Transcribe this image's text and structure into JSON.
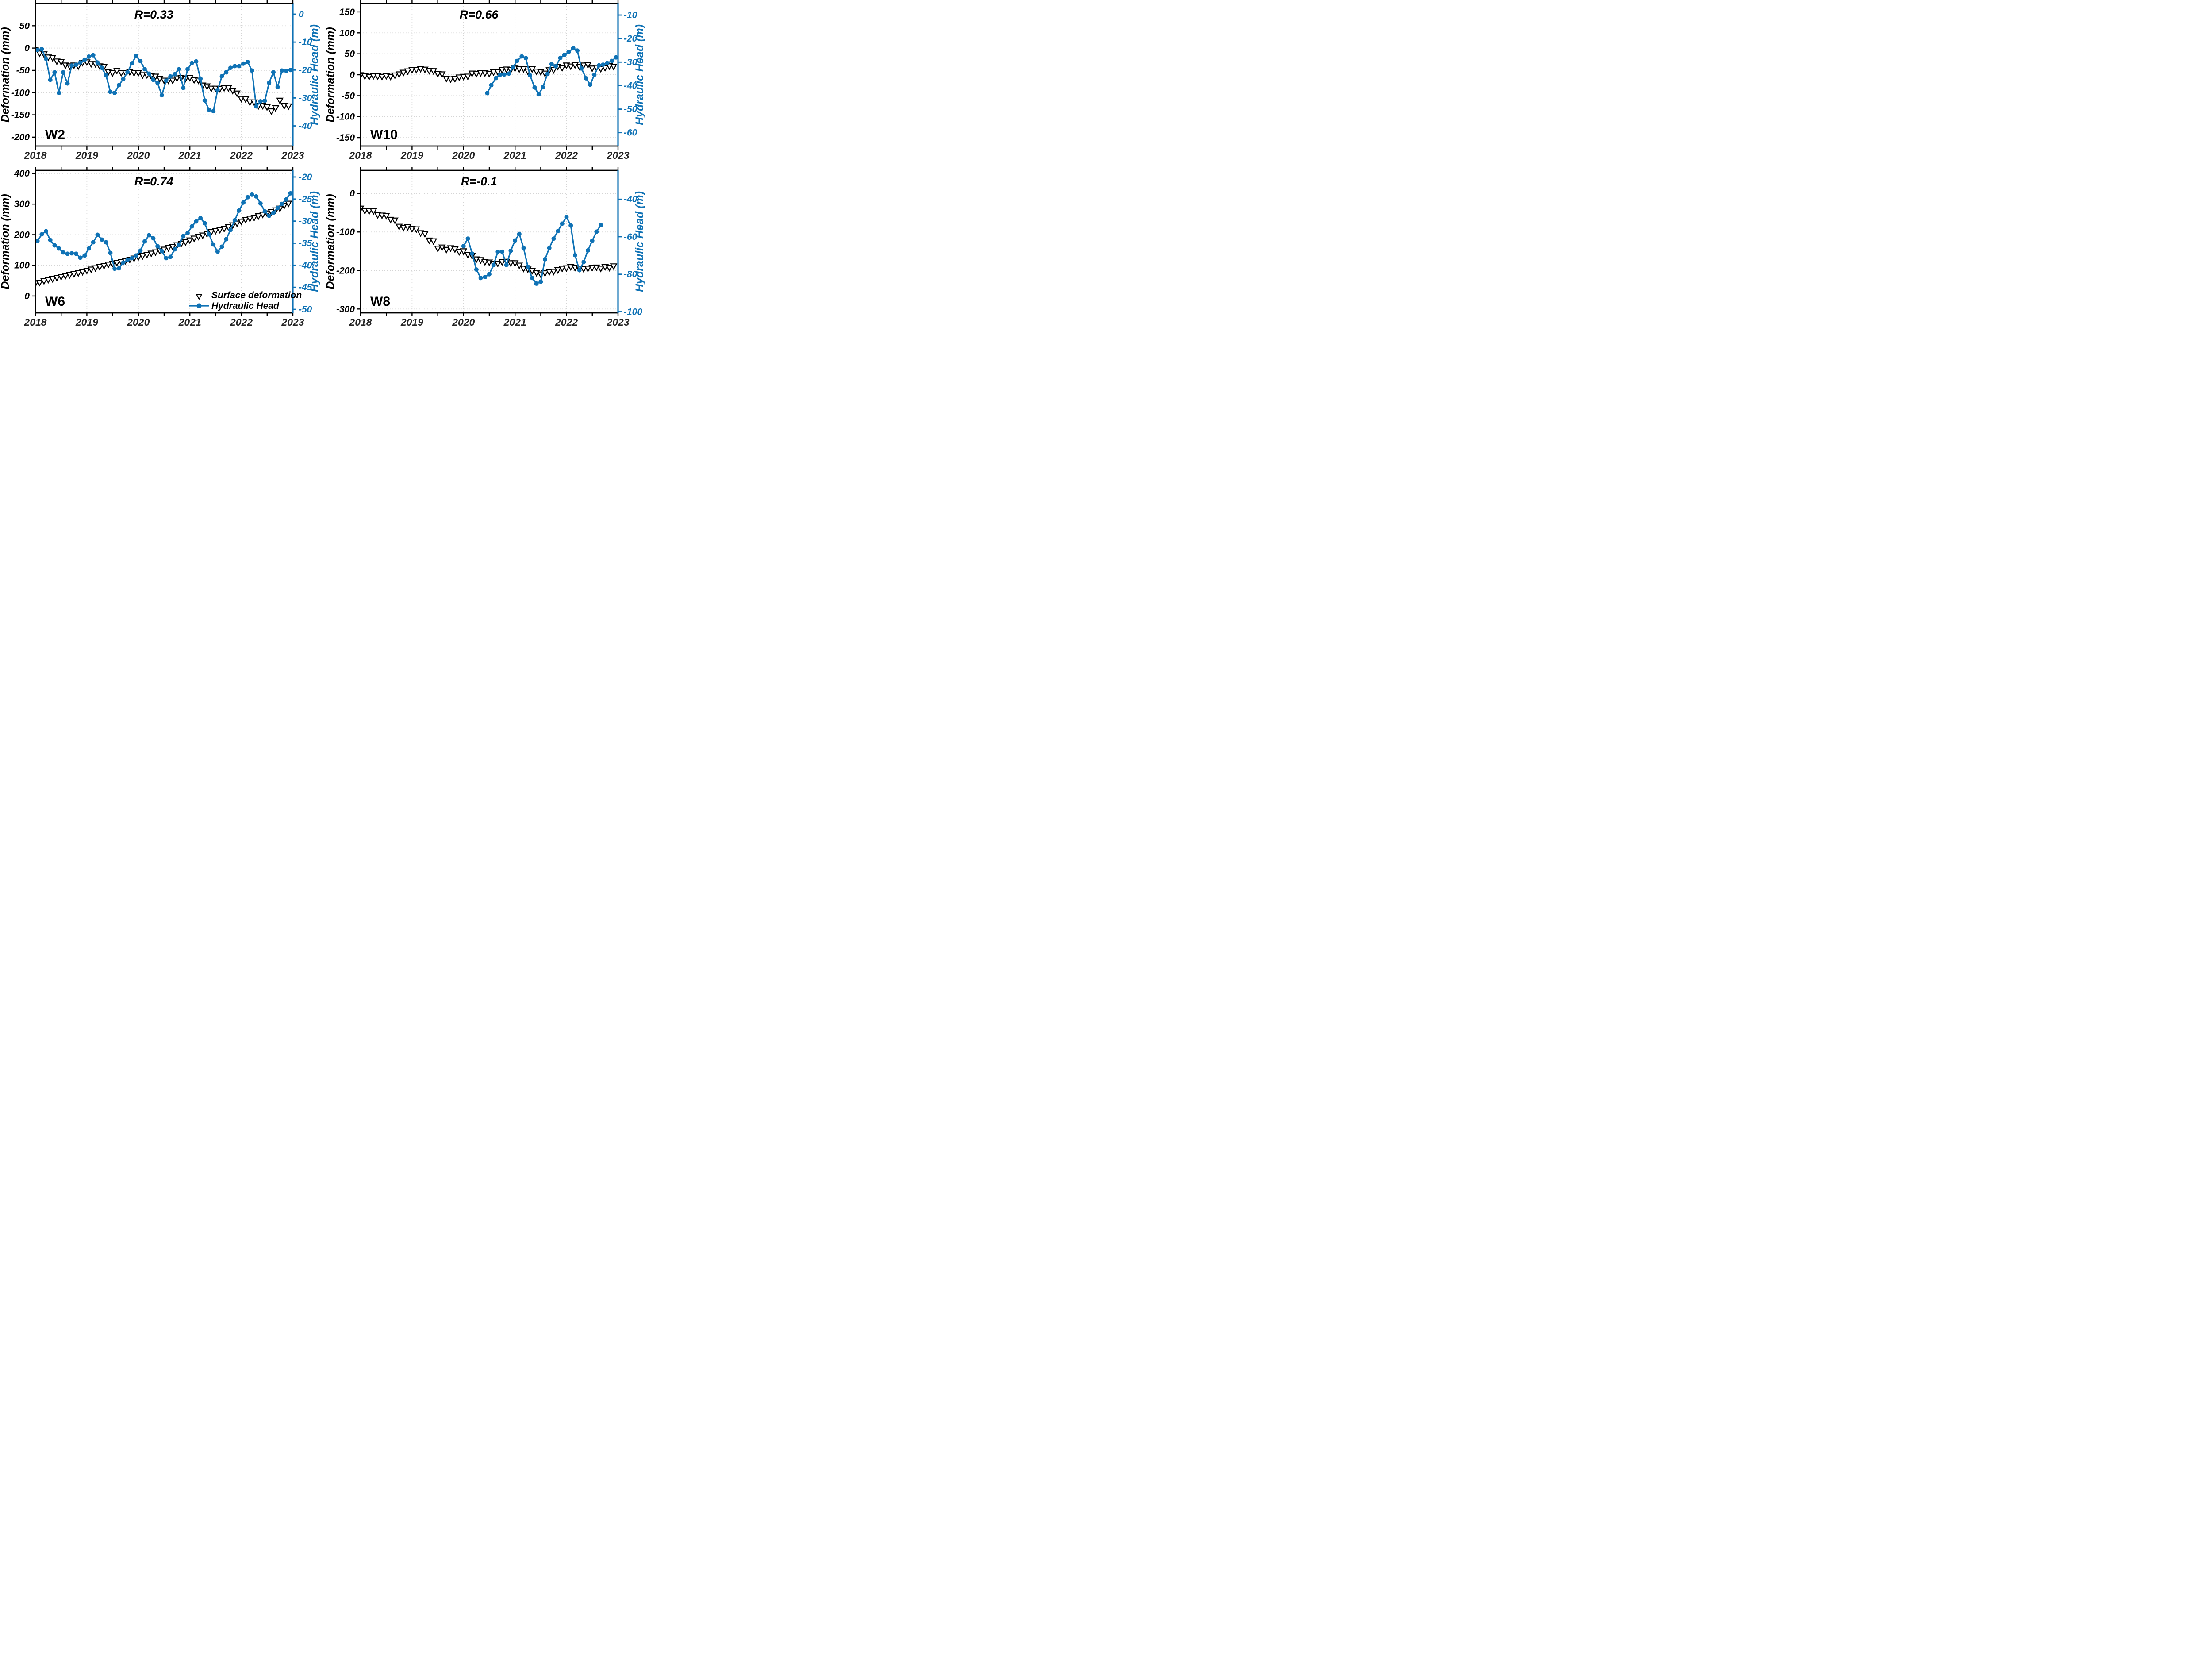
{
  "figure": {
    "background": "#ffffff"
  },
  "style": {
    "head_color": "#0f72b5",
    "deformation_color": "#000000",
    "grid_color": "#d4d4d4",
    "axis_color": "#000000",
    "year_label_color": "#262626"
  },
  "legend": {
    "items": [
      {
        "marker": "triangle-down-open",
        "label": "Surface deformation"
      },
      {
        "marker": "line-circle",
        "label": "Hydraulic Head"
      }
    ]
  },
  "chart_data": [
    {
      "type": "line",
      "well": "W2",
      "r_label": "R=0.33",
      "x_axis": {
        "lim": [
          2018,
          2023
        ],
        "ticks": [
          2018,
          2019,
          2020,
          2021,
          2022,
          2023
        ]
      },
      "left_axis": {
        "label": "Deformation (mm)",
        "lim": [
          -220,
          100
        ],
        "ticks": [
          50,
          0,
          -50,
          -100,
          -150,
          -200
        ]
      },
      "right_axis": {
        "label": "Hydraulic Head (m)",
        "lim": [
          -47.2,
          3.8
        ],
        "ticks": [
          0,
          -10,
          -20,
          -30,
          -40
        ]
      },
      "series": [
        {
          "name": "Surface deformation",
          "axis": "left",
          "marker": "triangle-down-open",
          "x_start": 2018.0,
          "x_step": 0.0833,
          "y": [
            -3,
            -11,
            -13,
            -20,
            -21,
            -29,
            -30,
            -38,
            -40,
            -38,
            -40,
            -32,
            -31,
            -35,
            -35,
            -40,
            -41,
            -53,
            -55,
            -50,
            -55,
            -55,
            -53,
            -55,
            -55,
            -60,
            -60,
            -62,
            -63,
            -68,
            -72,
            -72,
            -72,
            -67,
            -66,
            -68,
            -66,
            -71,
            -72,
            -83,
            -85,
            -90,
            -90,
            -91,
            -89,
            -89,
            -95,
            -101,
            -113,
            -114,
            -121,
            -121,
            -129,
            -129,
            -132,
            -141,
            -134,
            -117,
            -129,
            -130
          ]
        },
        {
          "name": "Hydraulic Head",
          "axis": "right",
          "marker": "line-circle",
          "x_start": 2018.04,
          "x_step": 0.0833,
          "y": [
            -12.8,
            -12.5,
            -16,
            -23.5,
            -20.8,
            -28.2,
            -20.8,
            -24.8,
            -18.4,
            -18.1,
            -17.3,
            -16.3,
            -15.2,
            -14.7,
            -17.3,
            -19.2,
            -21.9,
            -27.8,
            -28.2,
            -25.4,
            -23.2,
            -20.8,
            -17.6,
            -15,
            -16.8,
            -19.7,
            -21.3,
            -23.5,
            -24.6,
            -29,
            -23.8,
            -22.3,
            -21.5,
            -19.7,
            -26.4,
            -19.7,
            -17.5,
            -16.9,
            -23.1,
            -30.9,
            -34.2,
            -34.7,
            -27.2,
            -22.2,
            -20.8,
            -19.2,
            -18.6,
            -18.6,
            -17.7,
            -17.1,
            -20.2,
            -33,
            -31.2,
            -31,
            -24.6,
            -20.8,
            -26.1,
            -20.2,
            -20.3,
            -20
          ]
        }
      ],
      "show_legend": false
    },
    {
      "type": "line",
      "well": "W10",
      "r_label": "R=0.66",
      "x_axis": {
        "lim": [
          2018,
          2023
        ],
        "ticks": [
          2018,
          2019,
          2020,
          2021,
          2022,
          2023
        ]
      },
      "left_axis": {
        "label": "Deformation (mm)",
        "lim": [
          -170,
          170
        ],
        "ticks": [
          150,
          100,
          50,
          0,
          -50,
          -100,
          -150
        ]
      },
      "right_axis": {
        "label": "Hydraulic Head (m)",
        "lim": [
          -65.7,
          -5.1
        ],
        "ticks": [
          -10,
          -20,
          -30,
          -40,
          -50,
          -60
        ]
      },
      "series": [
        {
          "name": "Surface deformation",
          "axis": "left",
          "marker": "triangle-down-open",
          "x_start": 2018.0,
          "x_step": 0.0833,
          "y": [
            0,
            -2.6,
            -3.6,
            -2.1,
            -2.6,
            -3.6,
            -2.1,
            -3.6,
            -0.5,
            2.1,
            6.2,
            9.3,
            12.4,
            12.9,
            15,
            13.5,
            10.3,
            9.8,
            3.1,
            2.1,
            -8.2,
            -9.8,
            -8.8,
            -5.2,
            -3.6,
            -3.1,
            4.1,
            3.1,
            5.2,
            4.6,
            3.4,
            7,
            7.6,
            12.4,
            13.7,
            12.4,
            16.1,
            14.3,
            14.9,
            8.8,
            14.3,
            8.8,
            7.6,
            4,
            11.9,
            12.4,
            20.3,
            17.3,
            23.4,
            20.9,
            24,
            20.3,
            23.4,
            24.6,
            16.1,
            17.9,
            14.9,
            17.3,
            21.5,
            20.3
          ]
        },
        {
          "name": "Hydraulic Head",
          "axis": "right",
          "marker": "line-circle",
          "x": [
            2020.46,
            2020.54,
            2020.63,
            2020.71,
            2020.79,
            2020.88,
            2020.96,
            2021.04,
            2021.13,
            2021.21,
            2021.29,
            2021.38,
            2021.46,
            2021.54,
            2021.63,
            2021.71,
            2021.79,
            2021.88,
            2021.96,
            2022.04,
            2022.13,
            2022.21,
            2022.29,
            2022.38,
            2022.46,
            2022.54,
            2022.63,
            2022.71,
            2022.79,
            2022.88,
            2022.96
          ],
          "y": [
            -43.2,
            -39.8,
            -36.8,
            -35.4,
            -35.3,
            -34.9,
            -32.3,
            -29.5,
            -27.6,
            -28.3,
            -35.6,
            -40.8,
            -43.7,
            -40.7,
            -35,
            -30.8,
            -31.8,
            -28.2,
            -26.9,
            -25.7,
            -24.1,
            -25.1,
            -32.7,
            -36.9,
            -39.6,
            -35.4,
            -31.4,
            -31.1,
            -30.4,
            -29.5,
            -28
          ]
        }
      ],
      "show_legend": false
    },
    {
      "type": "line",
      "well": "W6",
      "r_label": "R=0.74",
      "x_axis": {
        "lim": [
          2018,
          2023
        ],
        "ticks": [
          2018,
          2019,
          2020,
          2021,
          2022,
          2023
        ]
      },
      "left_axis": {
        "label": "Deformation (mm)",
        "lim": [
          -55,
          410
        ],
        "ticks": [
          400,
          300,
          200,
          100,
          0
        ]
      },
      "right_axis": {
        "label": "Hydraulic Head (m)",
        "lim": [
          -50.8,
          -18.5
        ],
        "ticks": [
          -20,
          -25,
          -30,
          -35,
          -40,
          -45,
          -50
        ]
      },
      "series": [
        {
          "name": "Surface deformation",
          "axis": "left",
          "marker": "triangle-down-open",
          "x_start": 2018.0,
          "x_step": 0.0833,
          "y": [
            42,
            45,
            50,
            54,
            57,
            61,
            64,
            67,
            70,
            73,
            76,
            80,
            84,
            88,
            92,
            96,
            100,
            104,
            107,
            110,
            113,
            116,
            120,
            124,
            128,
            132,
            136,
            140,
            144,
            149,
            153,
            158,
            162,
            167,
            172,
            177,
            183,
            189,
            195,
            199,
            204,
            210,
            214,
            217,
            221,
            226,
            232,
            238,
            244,
            250,
            254,
            257,
            262,
            267,
            271,
            276,
            281,
            287,
            296,
            303
          ]
        },
        {
          "name": "Hydraulic Head",
          "axis": "right",
          "marker": "line-circle",
          "x_start": 2018.04,
          "x_step": 0.0833,
          "y": [
            -34.5,
            -33,
            -32.3,
            -34.3,
            -35.5,
            -36.2,
            -37.1,
            -37.4,
            -37.3,
            -37.4,
            -38.3,
            -37.8,
            -36.2,
            -34.8,
            -33.1,
            -34.2,
            -34.8,
            -37.2,
            -40.8,
            -40.7,
            -39.4,
            -38.8,
            -38.4,
            -37.8,
            -36.7,
            -34.6,
            -33.2,
            -33.9,
            -35.7,
            -36.8,
            -38.4,
            -38.1,
            -36.4,
            -35.4,
            -33.4,
            -32.7,
            -31.2,
            -30.1,
            -29.3,
            -30.5,
            -33,
            -35.3,
            -36.9,
            -35.8,
            -34.1,
            -32,
            -29.8,
            -27.6,
            -25.8,
            -24.6,
            -24,
            -24.4,
            -26,
            -27.8,
            -28.8,
            -28.1,
            -27,
            -26.1,
            -25.1,
            -23.7
          ]
        }
      ],
      "show_legend": true
    },
    {
      "type": "line",
      "well": "W8",
      "r_label": "R=-0.1",
      "x_axis": {
        "lim": [
          2018,
          2023
        ],
        "ticks": [
          2018,
          2019,
          2020,
          2021,
          2022,
          2023
        ]
      },
      "left_axis": {
        "label": "Deformation (mm)",
        "lim": [
          -310,
          60
        ],
        "ticks": [
          0,
          -100,
          -200,
          -300
        ]
      },
      "right_axis": {
        "label": "Hydraulic Head (m)",
        "lim": [
          -100.6,
          -24.6
        ],
        "ticks": [
          -40,
          -60,
          -80,
          -100
        ]
      },
      "series": [
        {
          "name": "Surface deformation",
          "axis": "left",
          "marker": "triangle-down-open",
          "x_start": 2018.0,
          "x_step": 0.0833,
          "y": [
            -38,
            -44,
            -45,
            -45,
            -55,
            -56,
            -57,
            -67,
            -69,
            -85,
            -88,
            -86,
            -91,
            -92,
            -102,
            -104,
            -121,
            -123,
            -142,
            -139,
            -145,
            -141,
            -144,
            -151,
            -149,
            -158,
            -161,
            -170,
            -172,
            -177,
            -178,
            -181,
            -181,
            -177,
            -176,
            -180,
            -180,
            -186,
            -194,
            -196,
            -200,
            -205,
            -209,
            -206,
            -203,
            -202,
            -198,
            -194,
            -193,
            -190,
            -192,
            -194,
            -195,
            -194,
            -192,
            -191,
            -194,
            -190,
            -192,
            -188
          ]
        },
        {
          "name": "Hydraulic Head",
          "axis": "right",
          "marker": "line-circle",
          "x_start": 2020.0,
          "x_step": 0.0833,
          "y": [
            -65,
            -61,
            -69,
            -77.5,
            -82,
            -81.5,
            -80,
            -75,
            -68,
            -68,
            -75,
            -67.5,
            -62,
            -58.5,
            -66,
            -76,
            -82,
            -85,
            -84,
            -72,
            -66,
            -61,
            -57,
            -53,
            -49.5,
            -54,
            -69.8,
            -77.8,
            -73.5,
            -67.3,
            -62.1,
            -57.3,
            -53.8
          ]
        }
      ],
      "show_legend": false
    }
  ]
}
